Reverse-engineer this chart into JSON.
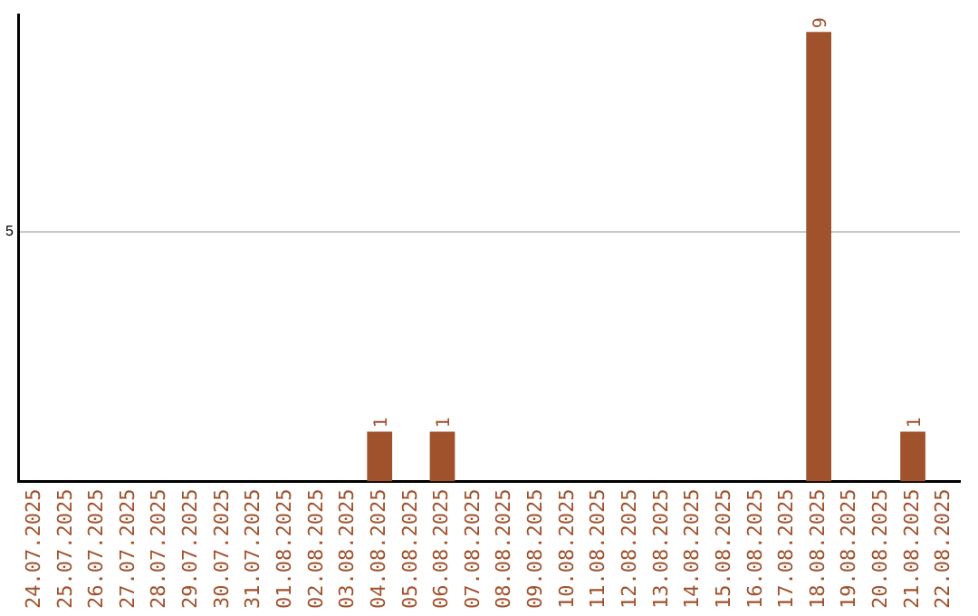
{
  "chart_data": {
    "type": "bar",
    "categories": [
      "24.07.2025",
      "25.07.2025",
      "26.07.2025",
      "27.07.2025",
      "28.07.2025",
      "29.07.2025",
      "30.07.2025",
      "31.07.2025",
      "01.08.2025",
      "02.08.2025",
      "03.08.2025",
      "04.08.2025",
      "05.08.2025",
      "06.08.2025",
      "07.08.2025",
      "08.08.2025",
      "09.08.2025",
      "10.08.2025",
      "11.08.2025",
      "12.08.2025",
      "13.08.2025",
      "14.08.2025",
      "15.08.2025",
      "16.08.2025",
      "17.08.2025",
      "18.08.2025",
      "19.08.2025",
      "20.08.2025",
      "21.08.2025",
      "22.08.2025"
    ],
    "values": [
      0,
      0,
      0,
      0,
      0,
      0,
      0,
      0,
      0,
      0,
      0,
      1,
      0,
      1,
      0,
      0,
      0,
      0,
      0,
      0,
      0,
      0,
      0,
      0,
      0,
      9,
      0,
      0,
      1,
      0
    ],
    "value_labels": [
      null,
      null,
      null,
      null,
      null,
      null,
      null,
      null,
      null,
      null,
      null,
      "1",
      null,
      "1",
      null,
      null,
      null,
      null,
      null,
      null,
      null,
      null,
      null,
      null,
      null,
      "9",
      null,
      null,
      "1",
      null
    ],
    "color": "#a0522d",
    "ylim": [
      0,
      9.35
    ],
    "yticks": [
      5
    ],
    "grid": "y",
    "legend": false
  }
}
